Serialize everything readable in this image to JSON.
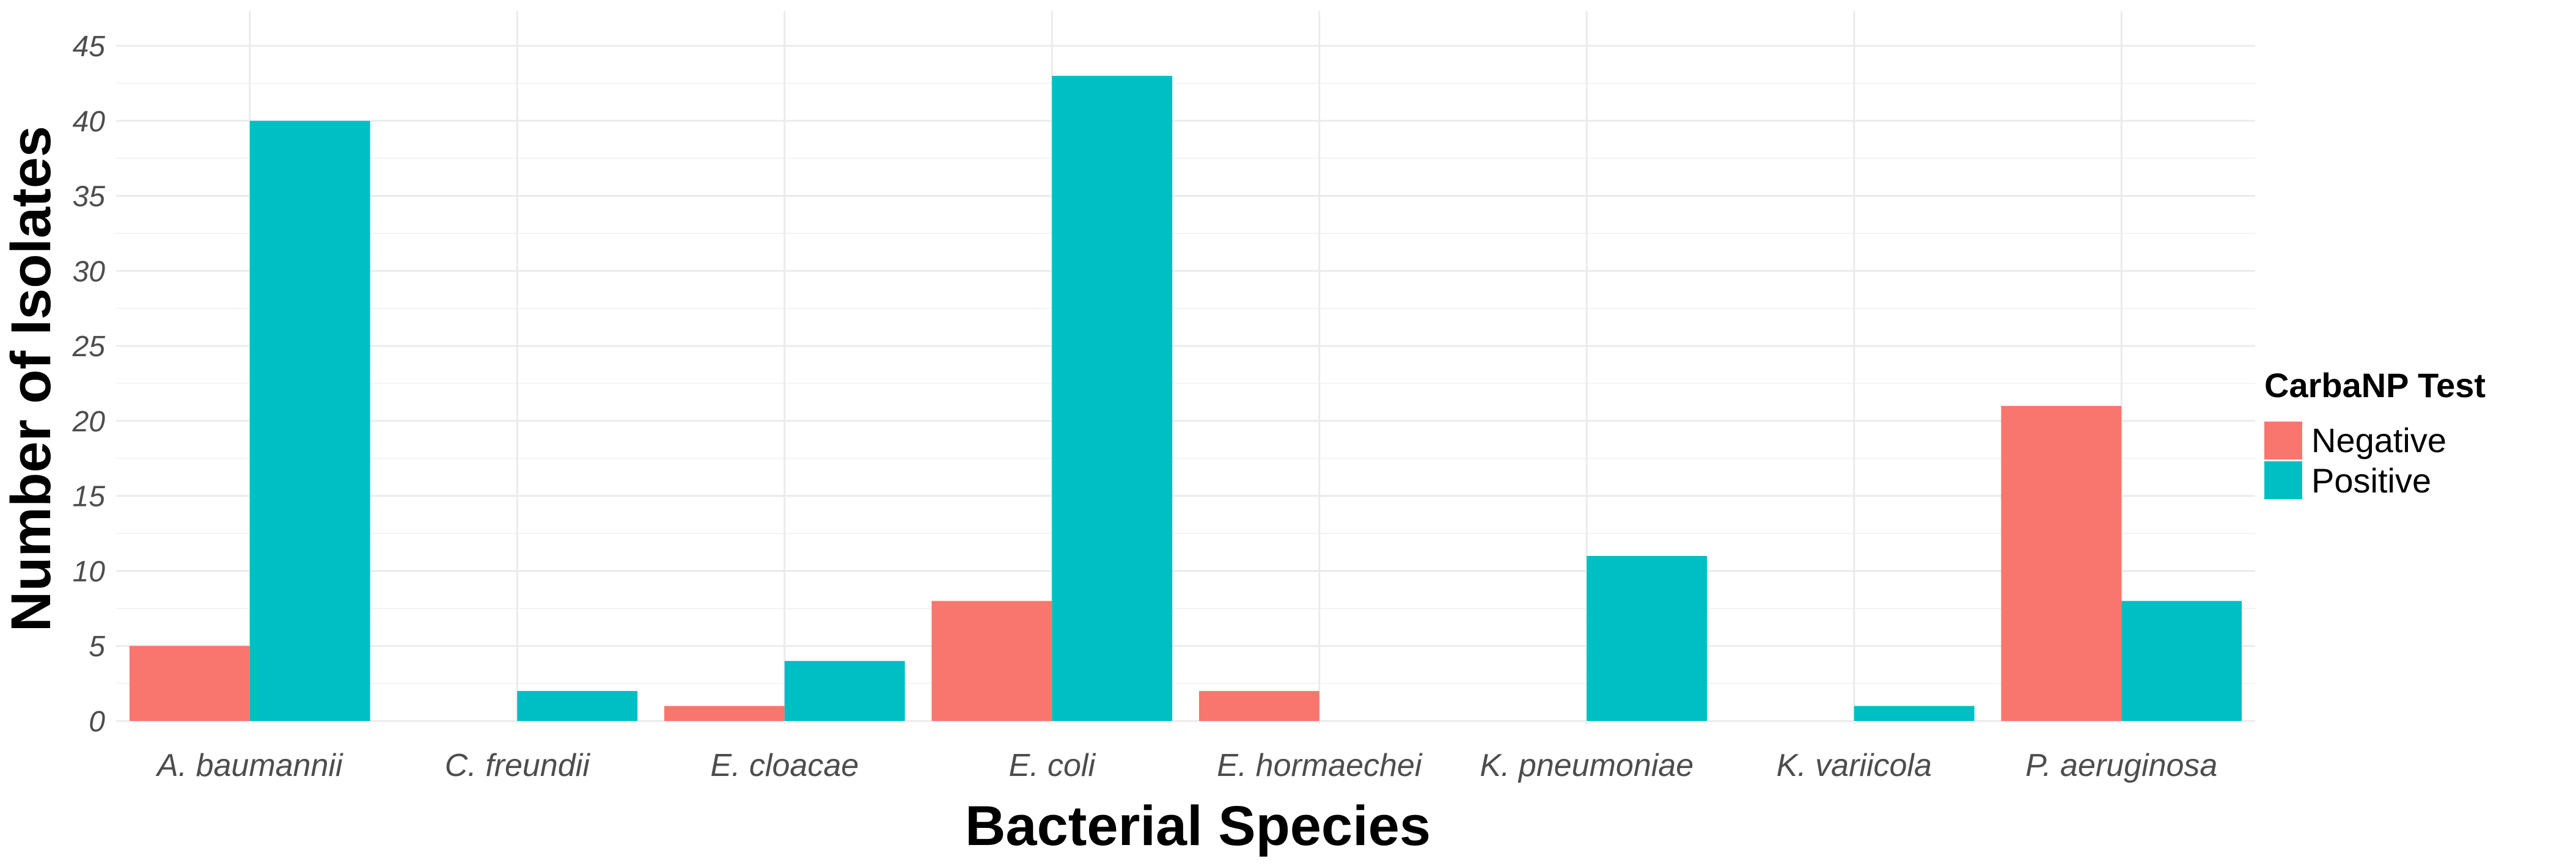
{
  "chart_data": {
    "type": "bar",
    "title": "",
    "xlabel": "Bacterial Species",
    "ylabel": "Number of Isolates",
    "ylim": [
      0,
      46
    ],
    "yticks": [
      0,
      5,
      10,
      15,
      20,
      25,
      30,
      35,
      40,
      45
    ],
    "grid": true,
    "legend": {
      "title": "CarbaNP Test",
      "position": "right"
    },
    "categories": [
      "A. baumannii",
      "C. freundii",
      "E. cloacae",
      "E. coli",
      "E. hormaechei",
      "K. pneumoniae",
      "K. variicola",
      "P. aeruginosa"
    ],
    "series": [
      {
        "name": "Negative",
        "color": "#f8766d",
        "values": [
          5,
          0,
          1,
          8,
          2,
          0,
          0,
          21
        ]
      },
      {
        "name": "Positive",
        "color": "#00bfc4",
        "values": [
          40,
          2,
          4,
          43,
          0,
          11,
          1,
          8
        ]
      }
    ]
  }
}
